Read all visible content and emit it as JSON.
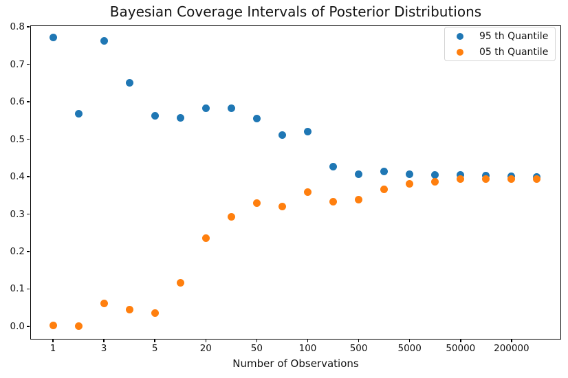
{
  "title": "Bayesian Coverage Intervals of Posterior Distributions",
  "xlabel": "Number of Observations",
  "legend": {
    "position": "upper right",
    "items": [
      {
        "label": "95 th Quantile",
        "color": "#1f77b4"
      },
      {
        "label": "05 th Quantile",
        "color": "#ff7f0e"
      }
    ]
  },
  "chart_data": {
    "type": "scatter",
    "title": "Bayesian Coverage Intervals of Posterior Distributions",
    "xlabel": "Number of Observations",
    "ylabel": "",
    "grid": false,
    "legend_position": "upper right",
    "x_scale": "categorical (log-like sequence, evenly spaced points)",
    "n_points": 20,
    "x_tick_labels": [
      "1",
      "3",
      "5",
      "20",
      "50",
      "100",
      "500",
      "5000",
      "50000",
      "200000"
    ],
    "x_tick_indices": [
      0,
      2,
      4,
      6,
      8,
      10,
      12,
      14,
      16,
      18
    ],
    "y_tick_labels": [
      "0.0",
      "0.1",
      "0.2",
      "0.3",
      "0.4",
      "0.5",
      "0.6",
      "0.7",
      "0.8"
    ],
    "y_ticks": [
      0.0,
      0.1,
      0.2,
      0.3,
      0.4,
      0.5,
      0.6,
      0.7,
      0.8
    ],
    "ylim": [
      -0.035,
      0.804
    ],
    "series": [
      {
        "name": "95 th Quantile",
        "key": "q95",
        "color": "#1f77b4",
        "values": [
          0.771,
          0.568,
          0.763,
          0.65,
          0.563,
          0.557,
          0.582,
          0.582,
          0.556,
          0.512,
          0.52,
          0.426,
          0.407,
          0.414,
          0.406,
          0.405,
          0.404,
          0.402,
          0.401,
          0.4
        ]
      },
      {
        "name": "05 th Quantile",
        "key": "q05",
        "color": "#ff7f0e",
        "values": [
          0.002,
          0.0,
          0.062,
          0.045,
          0.036,
          0.117,
          0.236,
          0.293,
          0.329,
          0.321,
          0.359,
          0.334,
          0.339,
          0.366,
          0.381,
          0.387,
          0.393,
          0.393,
          0.394,
          0.394
        ]
      }
    ]
  }
}
